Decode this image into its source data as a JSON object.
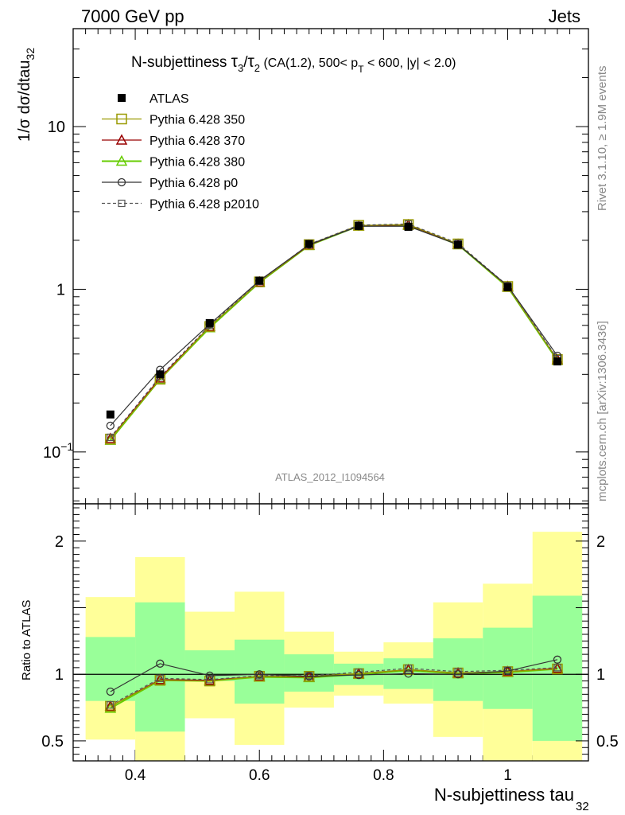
{
  "header": {
    "left": "7000 GeV pp",
    "right": "Jets"
  },
  "side_labels": {
    "rivet": "Rivet 3.1.10, ≥ 1.9M events",
    "mcplots": "mcplots.cern.ch [arXiv:1306.3436]"
  },
  "analysis_id": "ATLAS_2012_I1094564",
  "colors": {
    "yellow_band": "#ffff99",
    "green_band": "#99ff99",
    "pythia350": "#999900",
    "pythia370": "#990000",
    "pythia380": "#66cc00",
    "p0": "#333333",
    "p2010": "#555555"
  },
  "chart_data": [
    {
      "type": "scatter",
      "panel": "main",
      "title": {
        "prefix": "N-subjettiness ",
        "tau": "τ",
        "sub3": "3",
        "slash": "/",
        "sub2": "2",
        "cut1": " (CA(1.2), 500< p",
        "subT": "T",
        "cut2": " < 600, |y| < 2.0)"
      },
      "ylabel": {
        "main": "1/σ dσ/dtau",
        "sub": "32"
      },
      "yscale": "log",
      "ylim": [
        0.048,
        40
      ],
      "xlim": [
        0.3,
        1.13
      ],
      "yticks": [
        {
          "value": 0.1,
          "base": "10",
          "exp": "−1"
        },
        {
          "value": 1,
          "base": "1",
          "exp": ""
        },
        {
          "value": 10,
          "base": "10",
          "exp": ""
        }
      ],
      "legend_position": "top-left",
      "x": [
        0.36,
        0.44,
        0.52,
        0.6,
        0.68,
        0.76,
        0.84,
        0.92,
        1.0,
        1.08
      ],
      "series": [
        {
          "name": "ATLAS",
          "marker": "filled-square",
          "values": [
            0.17,
            0.3,
            0.62,
            1.13,
            1.9,
            2.45,
            2.42,
            1.88,
            1.03,
            0.36
          ]
        },
        {
          "name": "Pythia 6.428 350",
          "marker": "open-square",
          "values": [
            0.12,
            0.28,
            0.59,
            1.11,
            1.88,
            2.47,
            2.5,
            1.9,
            1.04,
            0.37
          ]
        },
        {
          "name": "Pythia 6.428 370",
          "marker": "open-triangle",
          "values": [
            0.121,
            0.285,
            0.59,
            1.11,
            1.87,
            2.46,
            2.49,
            1.89,
            1.04,
            0.37
          ]
        },
        {
          "name": "Pythia 6.428 380",
          "marker": "open-triangle",
          "values": [
            0.118,
            0.28,
            0.58,
            1.1,
            1.86,
            2.45,
            2.48,
            1.88,
            1.03,
            0.365
          ]
        },
        {
          "name": "Pythia 6.428 p0",
          "marker": "open-circle",
          "values": [
            0.145,
            0.32,
            0.61,
            1.13,
            1.88,
            2.44,
            2.44,
            1.88,
            1.05,
            0.39
          ]
        },
        {
          "name": "Pythia 6.428 p2010",
          "marker": "small-square-dashed",
          "values": [
            0.123,
            0.29,
            0.6,
            1.12,
            1.89,
            2.48,
            2.52,
            1.92,
            1.05,
            0.375
          ]
        }
      ]
    },
    {
      "type": "scatter",
      "panel": "ratio",
      "ylabel": "Ratio to ATLAS",
      "ylim": [
        0.35,
        2.28
      ],
      "xlim": [
        0.3,
        1.13
      ],
      "yticks": [
        0.5,
        1,
        2
      ],
      "xticks": [
        0.4,
        0.6,
        0.8,
        1
      ],
      "xlabel": {
        "main": "N-subjettiness tau",
        "sub": "32"
      },
      "bin_edges": [
        0.32,
        0.4,
        0.48,
        0.56,
        0.64,
        0.72,
        0.8,
        0.88,
        0.96,
        1.04,
        1.12
      ],
      "band_yellow": [
        [
          0.51,
          1.58
        ],
        [
          0.3,
          1.88
        ],
        [
          0.67,
          1.47
        ],
        [
          0.47,
          1.62
        ],
        [
          0.75,
          1.32
        ],
        [
          0.84,
          1.17
        ],
        [
          0.78,
          1.24
        ],
        [
          0.53,
          1.54
        ],
        [
          0.3,
          1.68
        ],
        [
          0.3,
          2.07
        ]
      ],
      "band_green": [
        [
          0.8,
          1.28
        ],
        [
          0.57,
          1.54
        ],
        [
          0.95,
          1.18
        ],
        [
          0.78,
          1.26
        ],
        [
          0.87,
          1.15
        ],
        [
          0.92,
          1.08
        ],
        [
          0.89,
          1.12
        ],
        [
          0.8,
          1.27
        ],
        [
          0.74,
          1.35
        ],
        [
          0.5,
          1.59
        ]
      ],
      "x": [
        0.36,
        0.44,
        0.52,
        0.6,
        0.68,
        0.76,
        0.84,
        0.92,
        1.0,
        1.08
      ],
      "series": [
        {
          "name": "Pythia 6.428 350",
          "values": [
            0.76,
            0.955,
            0.95,
            0.985,
            0.985,
            1.005,
            1.035,
            1.01,
            1.02,
            1.04
          ]
        },
        {
          "name": "Pythia 6.428 370",
          "values": [
            0.76,
            0.96,
            0.955,
            0.985,
            0.98,
            1.005,
            1.035,
            1.01,
            1.02,
            1.045
          ]
        },
        {
          "name": "Pythia 6.428 380",
          "values": [
            0.745,
            0.955,
            0.95,
            0.98,
            0.975,
            1.0,
            1.03,
            1.005,
            1.015,
            1.04
          ]
        },
        {
          "name": "Pythia 6.428 p0",
          "values": [
            0.87,
            1.08,
            0.99,
            1.0,
            0.985,
            0.995,
            1.005,
            1.0,
            1.025,
            1.11
          ]
        },
        {
          "name": "Pythia 6.428 p2010",
          "values": [
            0.77,
            0.97,
            0.96,
            0.99,
            0.99,
            1.015,
            1.045,
            1.02,
            1.03,
            1.05
          ]
        }
      ]
    }
  ]
}
